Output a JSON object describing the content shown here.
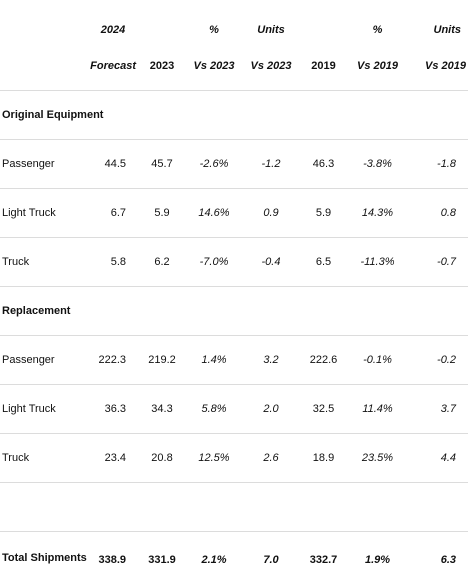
{
  "header": {
    "year_2024": "2024",
    "pct_top": "%",
    "units_top": "Units",
    "pct_top_2": "%",
    "units_top_2": "Units",
    "forecast": "Forecast",
    "y2023": "2023",
    "vs2023_pct": "Vs 2023",
    "vs2023_units": "Vs 2023",
    "y2019": "2019",
    "vs2019_pct": "Vs 2019",
    "vs2019_units": "Vs 2019"
  },
  "sections": {
    "original_equipment": "Original Equipment",
    "replacement": "Replacement"
  },
  "rows": [
    {
      "label": "Passenger",
      "forecast": "44.5",
      "y2023": "45.7",
      "vs2023_pct": "-2.6%",
      "vs2023_units": "-1.2",
      "y2019": "46.3",
      "vs2019_pct": "-3.8%",
      "vs2019_units": "-1.8"
    },
    {
      "label": "Light Truck",
      "forecast": "6.7",
      "y2023": "5.9",
      "vs2023_pct": "14.6%",
      "vs2023_units": "0.9",
      "y2019": "5.9",
      "vs2019_pct": "14.3%",
      "vs2019_units": "0.8"
    },
    {
      "label": "Truck",
      "forecast": "5.8",
      "y2023": "6.2",
      "vs2023_pct": "-7.0%",
      "vs2023_units": "-0.4",
      "y2019": "6.5",
      "vs2019_pct": "-11.3%",
      "vs2019_units": "-0.7"
    },
    {
      "label": "Passenger",
      "forecast": "222.3",
      "y2023": "219.2",
      "vs2023_pct": "1.4%",
      "vs2023_units": "3.2",
      "y2019": "222.6",
      "vs2019_pct": "-0.1%",
      "vs2019_units": "-0.2"
    },
    {
      "label": "Light Truck",
      "forecast": "36.3",
      "y2023": "34.3",
      "vs2023_pct": "5.8%",
      "vs2023_units": "2.0",
      "y2019": "32.5",
      "vs2019_pct": "11.4%",
      "vs2019_units": "3.7"
    },
    {
      "label": "Truck",
      "forecast": "23.4",
      "y2023": "20.8",
      "vs2023_pct": "12.5%",
      "vs2023_units": "2.6",
      "y2019": "18.9",
      "vs2019_pct": "23.5%",
      "vs2019_units": "4.4"
    }
  ],
  "total": {
    "label": "Total Shipments",
    "forecast": "338.9",
    "y2023": "331.9",
    "vs2023_pct": "2.1%",
    "vs2023_units": "7.0",
    "y2019": "332.7",
    "vs2019_pct": "1.9%",
    "vs2019_units": "6.3"
  }
}
